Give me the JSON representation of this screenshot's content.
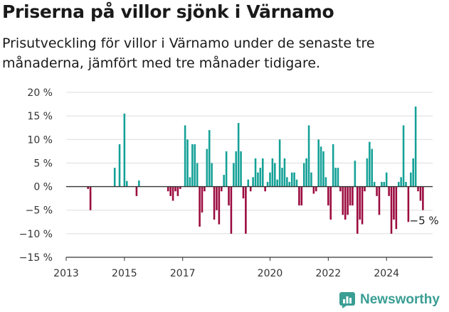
{
  "title": "Priserna på villor sjönk i Värnamo",
  "subtitle": "Prisutveckling för villor i Värnamo under de senaste tre månaderna, jämfört med tre månader tidigare.",
  "brand": {
    "name": "Newsworthy",
    "icon": "newsworthy-logo-icon"
  },
  "colors": {
    "positive": "#14a197",
    "negative": "#9b0a3e",
    "grid": "#dddddd",
    "zero_line": "#333333"
  },
  "chart_data": {
    "type": "bar",
    "x_ticks": [
      "2013",
      "2015",
      "2017",
      "2020",
      "2022",
      "2024"
    ],
    "x_tick_dates": [
      "2013-01",
      "2015-01",
      "2017-01",
      "2020-01",
      "2022-01",
      "2024-01"
    ],
    "x_range": [
      "2013-01",
      "2025-08"
    ],
    "y_ticks": [
      "20 %",
      "15 %",
      "10 %",
      "5 %",
      "0 %",
      "−5 %",
      "−10 %",
      "−15 %"
    ],
    "y_tick_values": [
      20,
      15,
      10,
      5,
      0,
      -5,
      -10,
      -15
    ],
    "ylim": [
      -15,
      20
    ],
    "grid": true,
    "annotation": {
      "label": "−5 %",
      "date": "2025-02",
      "value": -5
    },
    "series": [
      {
        "values": [
          {
            "date": "2013-10",
            "value": -0.5
          },
          {
            "date": "2013-11",
            "value": -5
          },
          {
            "date": "2014-09",
            "value": 4
          },
          {
            "date": "2014-11",
            "value": 9
          },
          {
            "date": "2015-01",
            "value": 15.5
          },
          {
            "date": "2015-02",
            "value": 1.2
          },
          {
            "date": "2015-06",
            "value": -2
          },
          {
            "date": "2015-07",
            "value": 1.3
          },
          {
            "date": "2016-07",
            "value": -1
          },
          {
            "date": "2016-08",
            "value": -2
          },
          {
            "date": "2016-09",
            "value": -3
          },
          {
            "date": "2016-10",
            "value": -1
          },
          {
            "date": "2016-11",
            "value": -2
          },
          {
            "date": "2016-12",
            "value": -0.5
          },
          {
            "date": "2017-02",
            "value": 13
          },
          {
            "date": "2017-03",
            "value": 10
          },
          {
            "date": "2017-04",
            "value": 2
          },
          {
            "date": "2017-05",
            "value": 9
          },
          {
            "date": "2017-06",
            "value": 9
          },
          {
            "date": "2017-07",
            "value": 5
          },
          {
            "date": "2017-08",
            "value": -8.5
          },
          {
            "date": "2017-09",
            "value": -5.5
          },
          {
            "date": "2017-10",
            "value": -1
          },
          {
            "date": "2017-11",
            "value": 8
          },
          {
            "date": "2017-12",
            "value": 12
          },
          {
            "date": "2018-01",
            "value": 5
          },
          {
            "date": "2018-02",
            "value": -7
          },
          {
            "date": "2018-03",
            "value": -5
          },
          {
            "date": "2018-04",
            "value": -8
          },
          {
            "date": "2018-05",
            "value": -1
          },
          {
            "date": "2018-06",
            "value": 2.5
          },
          {
            "date": "2018-07",
            "value": 7.5
          },
          {
            "date": "2018-08",
            "value": -4
          },
          {
            "date": "2018-09",
            "value": -10
          },
          {
            "date": "2018-10",
            "value": 5
          },
          {
            "date": "2018-11",
            "value": 7.5
          },
          {
            "date": "2018-12",
            "value": 13.5
          },
          {
            "date": "2019-01",
            "value": 7.5
          },
          {
            "date": "2019-02",
            "value": -2.5
          },
          {
            "date": "2019-03",
            "value": -10
          },
          {
            "date": "2019-04",
            "value": 1.5
          },
          {
            "date": "2019-05",
            "value": -1
          },
          {
            "date": "2019-06",
            "value": 2
          },
          {
            "date": "2019-07",
            "value": 6
          },
          {
            "date": "2019-08",
            "value": 3
          },
          {
            "date": "2019-09",
            "value": 4
          },
          {
            "date": "2019-10",
            "value": 6
          },
          {
            "date": "2019-11",
            "value": -1
          },
          {
            "date": "2019-12",
            "value": 1
          },
          {
            "date": "2020-01",
            "value": 3
          },
          {
            "date": "2020-02",
            "value": 6
          },
          {
            "date": "2020-03",
            "value": 5
          },
          {
            "date": "2020-04",
            "value": 1.5
          },
          {
            "date": "2020-05",
            "value": 10
          },
          {
            "date": "2020-06",
            "value": 4
          },
          {
            "date": "2020-07",
            "value": 6
          },
          {
            "date": "2020-08",
            "value": 2
          },
          {
            "date": "2020-09",
            "value": 1
          },
          {
            "date": "2020-10",
            "value": 3
          },
          {
            "date": "2020-11",
            "value": 3
          },
          {
            "date": "2020-12",
            "value": 1.5
          },
          {
            "date": "2021-01",
            "value": -4
          },
          {
            "date": "2021-02",
            "value": -4
          },
          {
            "date": "2021-03",
            "value": 5
          },
          {
            "date": "2021-04",
            "value": 6
          },
          {
            "date": "2021-05",
            "value": 13
          },
          {
            "date": "2021-06",
            "value": 3
          },
          {
            "date": "2021-07",
            "value": -1.5
          },
          {
            "date": "2021-08",
            "value": -1
          },
          {
            "date": "2021-09",
            "value": 10
          },
          {
            "date": "2021-10",
            "value": 8.5
          },
          {
            "date": "2021-11",
            "value": 7.5
          },
          {
            "date": "2021-12",
            "value": 2
          },
          {
            "date": "2022-01",
            "value": -4
          },
          {
            "date": "2022-02",
            "value": -7
          },
          {
            "date": "2022-03",
            "value": 9
          },
          {
            "date": "2022-04",
            "value": 4
          },
          {
            "date": "2022-05",
            "value": 4
          },
          {
            "date": "2022-06",
            "value": -1
          },
          {
            "date": "2022-07",
            "value": -6
          },
          {
            "date": "2022-08",
            "value": -7
          },
          {
            "date": "2022-09",
            "value": -6
          },
          {
            "date": "2022-10",
            "value": -4
          },
          {
            "date": "2022-11",
            "value": -4
          },
          {
            "date": "2022-12",
            "value": 5.5
          },
          {
            "date": "2023-01",
            "value": -10
          },
          {
            "date": "2023-02",
            "value": -7
          },
          {
            "date": "2023-03",
            "value": -8
          },
          {
            "date": "2023-04",
            "value": -1
          },
          {
            "date": "2023-05",
            "value": 6
          },
          {
            "date": "2023-06",
            "value": 9.5
          },
          {
            "date": "2023-07",
            "value": 8
          },
          {
            "date": "2023-08",
            "value": 1
          },
          {
            "date": "2023-09",
            "value": -2
          },
          {
            "date": "2023-10",
            "value": -6
          },
          {
            "date": "2023-11",
            "value": 1
          },
          {
            "date": "2023-12",
            "value": 1
          },
          {
            "date": "2024-01",
            "value": 3
          },
          {
            "date": "2024-02",
            "value": -2
          },
          {
            "date": "2024-03",
            "value": -10
          },
          {
            "date": "2024-04",
            "value": -7
          },
          {
            "date": "2024-05",
            "value": -9
          },
          {
            "date": "2024-06",
            "value": 1
          },
          {
            "date": "2024-07",
            "value": 2
          },
          {
            "date": "2024-08",
            "value": 13
          },
          {
            "date": "2024-09",
            "value": 1
          },
          {
            "date": "2024-10",
            "value": -7.5
          },
          {
            "date": "2024-11",
            "value": 3
          },
          {
            "date": "2024-12",
            "value": 6
          },
          {
            "date": "2025-01",
            "value": 17
          },
          {
            "date": "2025-02",
            "value": -1
          },
          {
            "date": "2025-03",
            "value": -3
          },
          {
            "date": "2025-04",
            "value": -5
          }
        ]
      }
    ]
  }
}
